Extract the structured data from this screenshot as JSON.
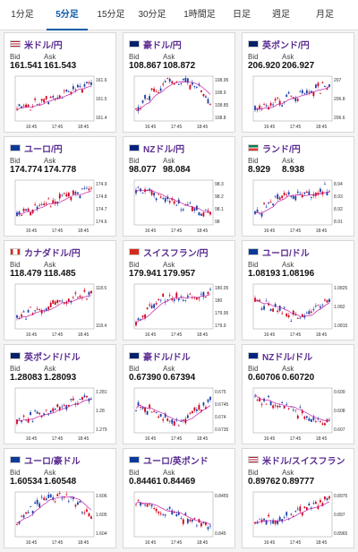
{
  "tabs": [
    {
      "label": "1分足",
      "active": false
    },
    {
      "label": "5分足",
      "active": true
    },
    {
      "label": "15分足",
      "active": false
    },
    {
      "label": "30分足",
      "active": false
    },
    {
      "label": "1時間足",
      "active": false
    },
    {
      "label": "日足",
      "active": false
    },
    {
      "label": "週足",
      "active": false
    },
    {
      "label": "月足",
      "active": false
    }
  ],
  "labels": {
    "bid": "Bid",
    "ask": "Ask"
  },
  "colors": {
    "title": "#5a2d91",
    "tab_active": "#0a5ca8",
    "up": "#d0021b",
    "down": "#1a3fa8",
    "ma": "#c21fa8"
  },
  "pairs": [
    {
      "name": "米ドル/円",
      "flag": "us-flag",
      "bid": "161.541",
      "ask": "161.543",
      "chart_data": {
        "type": "candlestick",
        "yticks": [
          "161.6",
          "161.5",
          "161.4"
        ],
        "xticks": [
          "16:45",
          "17:45",
          "18:45"
        ],
        "trend": "up"
      }
    },
    {
      "name": "豪ドル/円",
      "flag": "au-flag",
      "bid": "108.867",
      "ask": "108.872",
      "chart_data": {
        "type": "candlestick",
        "yticks": [
          "108.95",
          "108.9",
          "108.85",
          "108.8"
        ],
        "xticks": [
          "16:45",
          "17:45",
          "18:45"
        ],
        "trend": "updown"
      }
    },
    {
      "name": "英ポンド/円",
      "flag": "gb-flag",
      "bid": "206.920",
      "ask": "206.927",
      "chart_data": {
        "type": "candlestick",
        "yticks": [
          "207",
          "206.8",
          "206.6"
        ],
        "xticks": [
          "16:45",
          "17:45",
          "18:45"
        ],
        "trend": "up"
      }
    },
    {
      "name": "ユーロ/円",
      "flag": "eu-flag",
      "bid": "174.774",
      "ask": "174.778",
      "chart_data": {
        "type": "candlestick",
        "yticks": [
          "174.9",
          "174.8",
          "174.7",
          "174.6"
        ],
        "xticks": [
          "16:45",
          "17:45",
          "18:45"
        ],
        "trend": "up"
      }
    },
    {
      "name": "NZドル/円",
      "flag": "nz-flag",
      "bid": "98.077",
      "ask": "98.084",
      "chart_data": {
        "type": "candlestick",
        "yticks": [
          "98.3",
          "98.2",
          "98.1",
          "98"
        ],
        "xticks": [
          "16:45",
          "17:45",
          "18:45"
        ],
        "trend": "down"
      }
    },
    {
      "name": "ランド/円",
      "flag": "za-flag",
      "bid": "8.929",
      "ask": "8.938",
      "chart_data": {
        "type": "candlestick",
        "yticks": [
          "8.94",
          "8.93",
          "8.92",
          "8.91"
        ],
        "xticks": [
          "16:45",
          "17:45",
          "18:45"
        ],
        "trend": "upflat"
      }
    },
    {
      "name": "カナダドル/円",
      "flag": "ca-flag",
      "bid": "118.479",
      "ask": "118.485",
      "chart_data": {
        "type": "candlestick",
        "yticks": [
          "118.5",
          "118.4"
        ],
        "xticks": [
          "16:45",
          "17:45",
          "18:45"
        ],
        "trend": "up"
      }
    },
    {
      "name": "スイスフラン/円",
      "flag": "ch-flag",
      "bid": "179.941",
      "ask": "179.957",
      "chart_data": {
        "type": "candlestick",
        "yticks": [
          "180.05",
          "180",
          "179.95",
          "179.9"
        ],
        "xticks": [
          "16:45",
          "17:45",
          "18:45"
        ],
        "trend": "upflat"
      }
    },
    {
      "name": "ユーロ/ドル",
      "flag": "eu-flag",
      "bid": "1.08193",
      "ask": "1.08196",
      "chart_data": {
        "type": "candlestick",
        "yticks": [
          "1.0825",
          "1.082",
          "1.0815"
        ],
        "xticks": [
          "16:45",
          "17:45",
          "18:45"
        ],
        "trend": "dip"
      }
    },
    {
      "name": "英ポンド/ドル",
      "flag": "gb-flag",
      "bid": "1.28083",
      "ask": "1.28093",
      "chart_data": {
        "type": "candlestick",
        "yticks": [
          "1.281",
          "1.28",
          "1.279"
        ],
        "xticks": [
          "16:45",
          "17:45",
          "18:45"
        ],
        "trend": "up"
      }
    },
    {
      "name": "豪ドル/ドル",
      "flag": "au-flag",
      "bid": "0.67390",
      "ask": "0.67394",
      "chart_data": {
        "type": "candlestick",
        "yticks": [
          "0.675",
          "0.6745",
          "0.674",
          "0.6735"
        ],
        "xticks": [
          "16:45",
          "17:45",
          "18:45"
        ],
        "trend": "dip"
      }
    },
    {
      "name": "NZドル/ドル",
      "flag": "nz-flag",
      "bid": "0.60706",
      "ask": "0.60720",
      "chart_data": {
        "type": "candlestick",
        "yticks": [
          "0.609",
          "0.608",
          "0.607"
        ],
        "xticks": [
          "16:45",
          "17:45",
          "18:45"
        ],
        "trend": "down"
      }
    },
    {
      "name": "ユーロ/豪ドル",
      "flag": "eu-flag",
      "bid": "1.60534",
      "ask": "1.60548",
      "chart_data": {
        "type": "candlestick",
        "yticks": [
          "1.606",
          "1.605",
          "1.604"
        ],
        "xticks": [
          "16:45",
          "17:45",
          "18:45"
        ],
        "trend": "updown"
      }
    },
    {
      "name": "ユーロ/英ポンド",
      "flag": "eu-flag",
      "bid": "0.84461",
      "ask": "0.84469",
      "chart_data": {
        "type": "candlestick",
        "yticks": [
          "0.8455",
          "0.845"
        ],
        "xticks": [
          "16:45",
          "17:45",
          "18:45"
        ],
        "trend": "down"
      }
    },
    {
      "name": "米ドル/スイスフラン",
      "flag": "us-flag",
      "bid": "0.89762",
      "ask": "0.89777",
      "chart_data": {
        "type": "candlestick",
        "yticks": [
          "0.8975",
          "0.897",
          "0.8965"
        ],
        "xticks": [
          "16:45",
          "17:45",
          "18:45"
        ],
        "trend": "up"
      }
    }
  ]
}
